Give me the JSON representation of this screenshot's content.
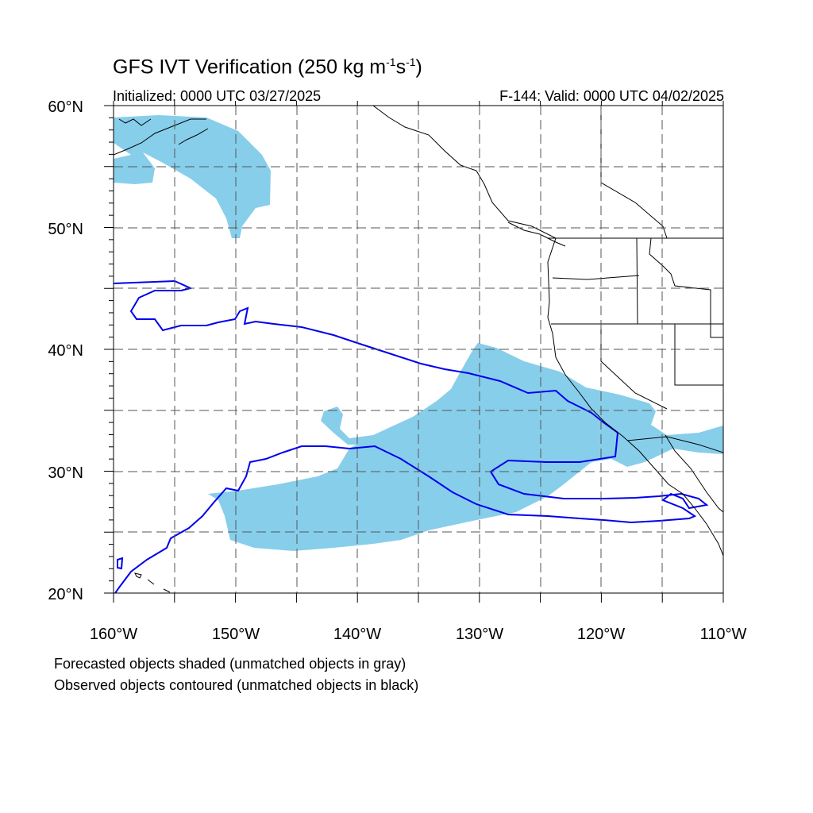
{
  "title": {
    "main": "GFS IVT Verification (250 kg m",
    "sup1": "-1",
    "mid": "s",
    "sup2": "-1",
    "end": ")"
  },
  "initialized": "Initialized: 0000 UTC 03/27/2025",
  "valid": "F-144: Valid: 0000 UTC 04/02/2025",
  "notes": {
    "forecast": "Forecasted objects shaded (unmatched objects in gray)",
    "observed": "Observed objects contoured (unmatched objects in black)"
  },
  "axes": {
    "lat_labels": [
      "60°N",
      "50°N",
      "40°N",
      "30°N",
      "20°N"
    ],
    "lon_labels": [
      "160°W",
      "150°W",
      "140°W",
      "130°W",
      "120°W",
      "110°W"
    ],
    "lat_range": [
      20,
      60
    ],
    "lon_range": [
      -160,
      -110
    ]
  },
  "colors": {
    "forecast_fill": "#87ceeb",
    "observed_contour": "#0000ee",
    "coastline": "#000000",
    "grid": "#555555"
  }
}
